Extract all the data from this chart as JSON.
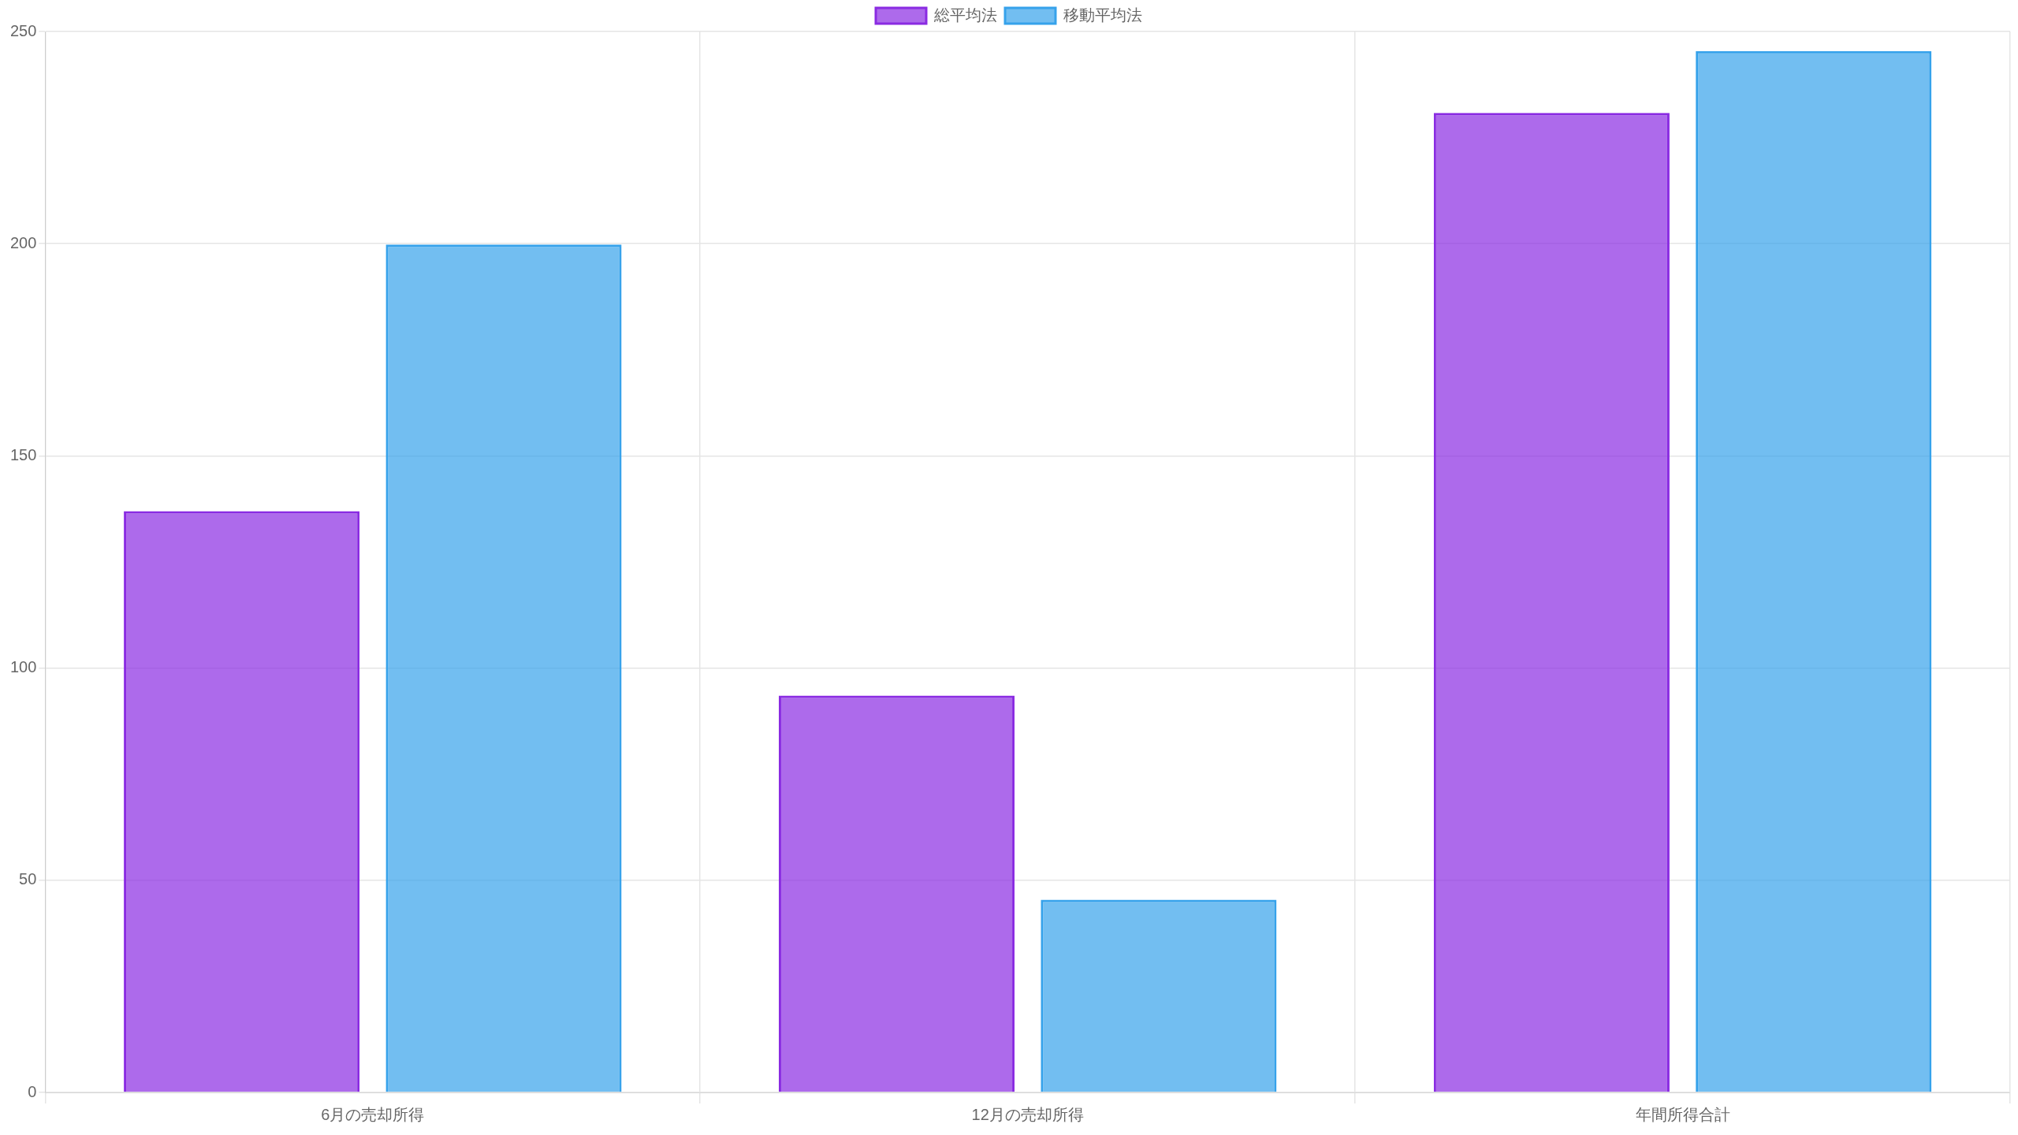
{
  "chart_data": {
    "type": "bar",
    "categories": [
      "6月の売却所得",
      "12月の売却所得",
      "年間所得合計"
    ],
    "series": [
      {
        "name": "総平均法",
        "color": "#8a2be2",
        "values": [
          137,
          93.5,
          230.8
        ]
      },
      {
        "name": "移動平均法",
        "color": "#36a2eb",
        "values": [
          199.8,
          45.4,
          245.4
        ]
      }
    ],
    "ylim": [
      0,
      250
    ],
    "yticks": [
      0,
      50,
      100,
      150,
      200,
      250
    ],
    "grid": true,
    "legend": "top"
  }
}
